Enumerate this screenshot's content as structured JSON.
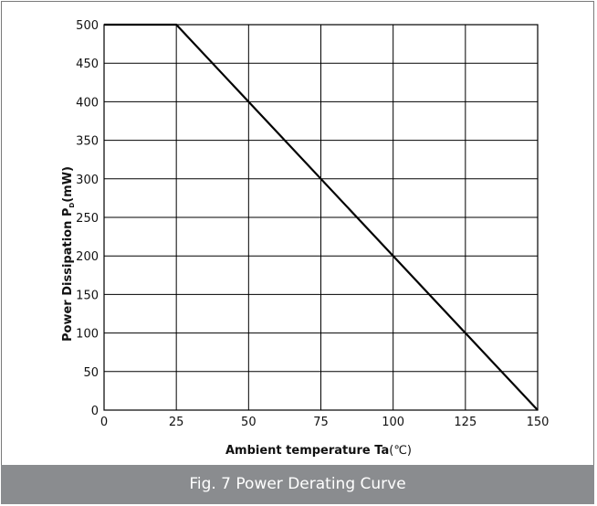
{
  "chart_data": {
    "type": "line",
    "title": "",
    "xlabel": "Ambient temperature  Ta",
    "xlabel_unit": "(℃)",
    "ylabel_main": "Power Dissipation P",
    "ylabel_sub": "D",
    "ylabel_unit": "(mW)",
    "xlim": [
      0,
      150
    ],
    "ylim": [
      0,
      500
    ],
    "x_ticks": [
      0,
      25,
      50,
      75,
      100,
      125,
      150
    ],
    "y_ticks": [
      0,
      50,
      100,
      150,
      200,
      250,
      300,
      350,
      400,
      450,
      500
    ],
    "grid": true,
    "legend": "none",
    "series": [
      {
        "color": "#000000",
        "x": [
          0,
          25,
          150
        ],
        "y": [
          500,
          500,
          0
        ]
      }
    ]
  },
  "caption": "Fig. 7 Power Derating Curve"
}
